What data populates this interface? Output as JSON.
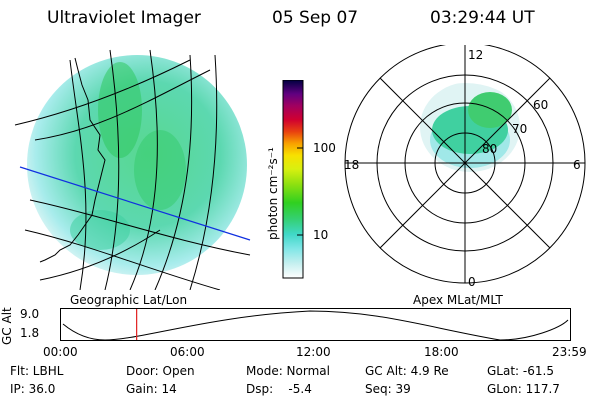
{
  "header": {
    "title": "Ultraviolet Imager",
    "date": "05 Sep 07",
    "time": "03:29:44 UT"
  },
  "left_panel": {
    "label": "Geographic Lat/Lon"
  },
  "colorbar": {
    "unit_label": "photon cm⁻²s⁻¹",
    "tick_labels": [
      "100",
      "10"
    ],
    "scale": "log",
    "colors": [
      "#ffffff",
      "#c8f0f0",
      "#7fe6e6",
      "#40d8c8",
      "#34d070",
      "#30d020",
      "#8be010",
      "#d8f010",
      "#f8e000",
      "#f8a000",
      "#e84010",
      "#d00030",
      "#a00060",
      "#600080",
      "#000040"
    ]
  },
  "right_panel": {
    "label": "Apex MLat/MLT",
    "mlt_labels": [
      "12",
      "18",
      "6",
      "0"
    ],
    "mlat_labels": [
      "60",
      "70",
      "80"
    ]
  },
  "altitude_plot": {
    "ylabel": "GC Alt",
    "y_ticks": [
      "9.0",
      "1.8"
    ],
    "x_ticks": [
      "00:00",
      "06:00",
      "12:00",
      "18:00",
      "23:59"
    ],
    "current_time_marker_hour": 3.5,
    "marker_color": "#e02020"
  },
  "info": {
    "flt": "Flt: LBHL",
    "ip": "IP: 36.0",
    "door": "Door: Open",
    "gain": "Gain: 14",
    "mode": "Mode: Normal",
    "dsp": "Dsp:    -5.4",
    "gc_alt": "GC Alt: 4.9 Re",
    "seq": "Seq: 39",
    "glat": "GLat: -61.5",
    "glon": "GLon: 117.7"
  }
}
